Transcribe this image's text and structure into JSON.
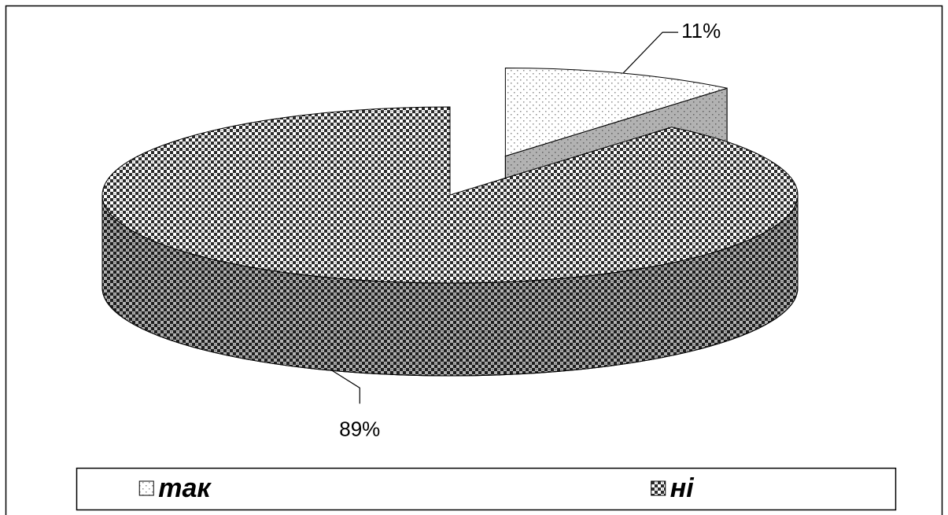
{
  "chart_data": {
    "type": "pie",
    "categories": [
      "так",
      "ні"
    ],
    "values": [
      11,
      89
    ],
    "value_labels": [
      "11%",
      "89%"
    ],
    "colors": [
      "#8c8c8c",
      "#2b2b2b"
    ],
    "legend": "bottom"
  }
}
